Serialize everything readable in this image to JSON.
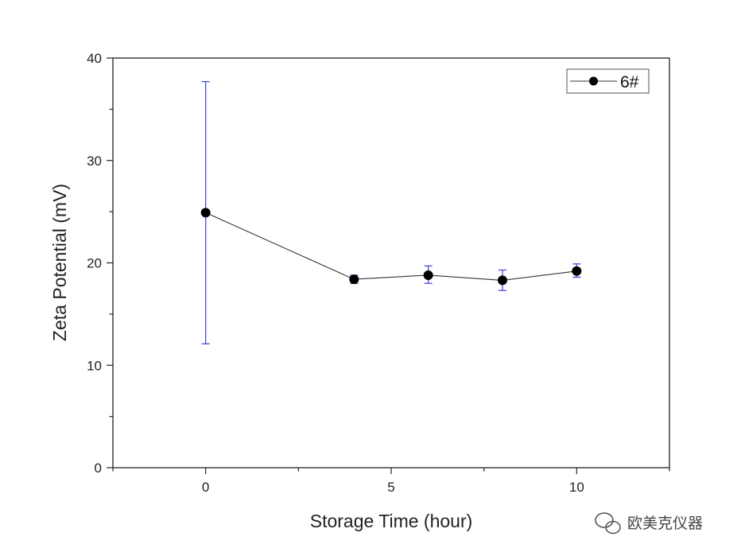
{
  "chart_data": {
    "type": "scatter",
    "xlabel": "Storage Time (hour)",
    "ylabel": "Zeta Potential (mV)",
    "xlim": [
      -2.5,
      12.5
    ],
    "ylim": [
      0,
      40
    ],
    "x_ticks": [
      0,
      5,
      10
    ],
    "x_tick_labels": [
      "0",
      "5",
      "10"
    ],
    "x_minor_ticks": [
      -2.5,
      2.5,
      7.5,
      12.5
    ],
    "y_ticks": [
      0,
      10,
      20,
      30,
      40
    ],
    "y_tick_labels": [
      "0",
      "10",
      "20",
      "30",
      "40"
    ],
    "y_minor_ticks": [
      5,
      15,
      25,
      35
    ],
    "grid": false,
    "legend_position": "top-right",
    "series": [
      {
        "name": "6#",
        "x": [
          0,
          4,
          6,
          8,
          10
        ],
        "y": [
          24.9,
          18.4,
          18.8,
          18.3,
          19.2
        ],
        "err_low": [
          12.1,
          18.0,
          18.0,
          17.3,
          18.6
        ],
        "err_high": [
          37.7,
          18.8,
          19.7,
          19.3,
          19.9
        ],
        "marker_color": "#000000",
        "line_color": "#333333",
        "error_color": "#4a4ae0"
      }
    ]
  },
  "watermark": {
    "text": "欧美克仪器",
    "icon": "wechat-icon"
  }
}
